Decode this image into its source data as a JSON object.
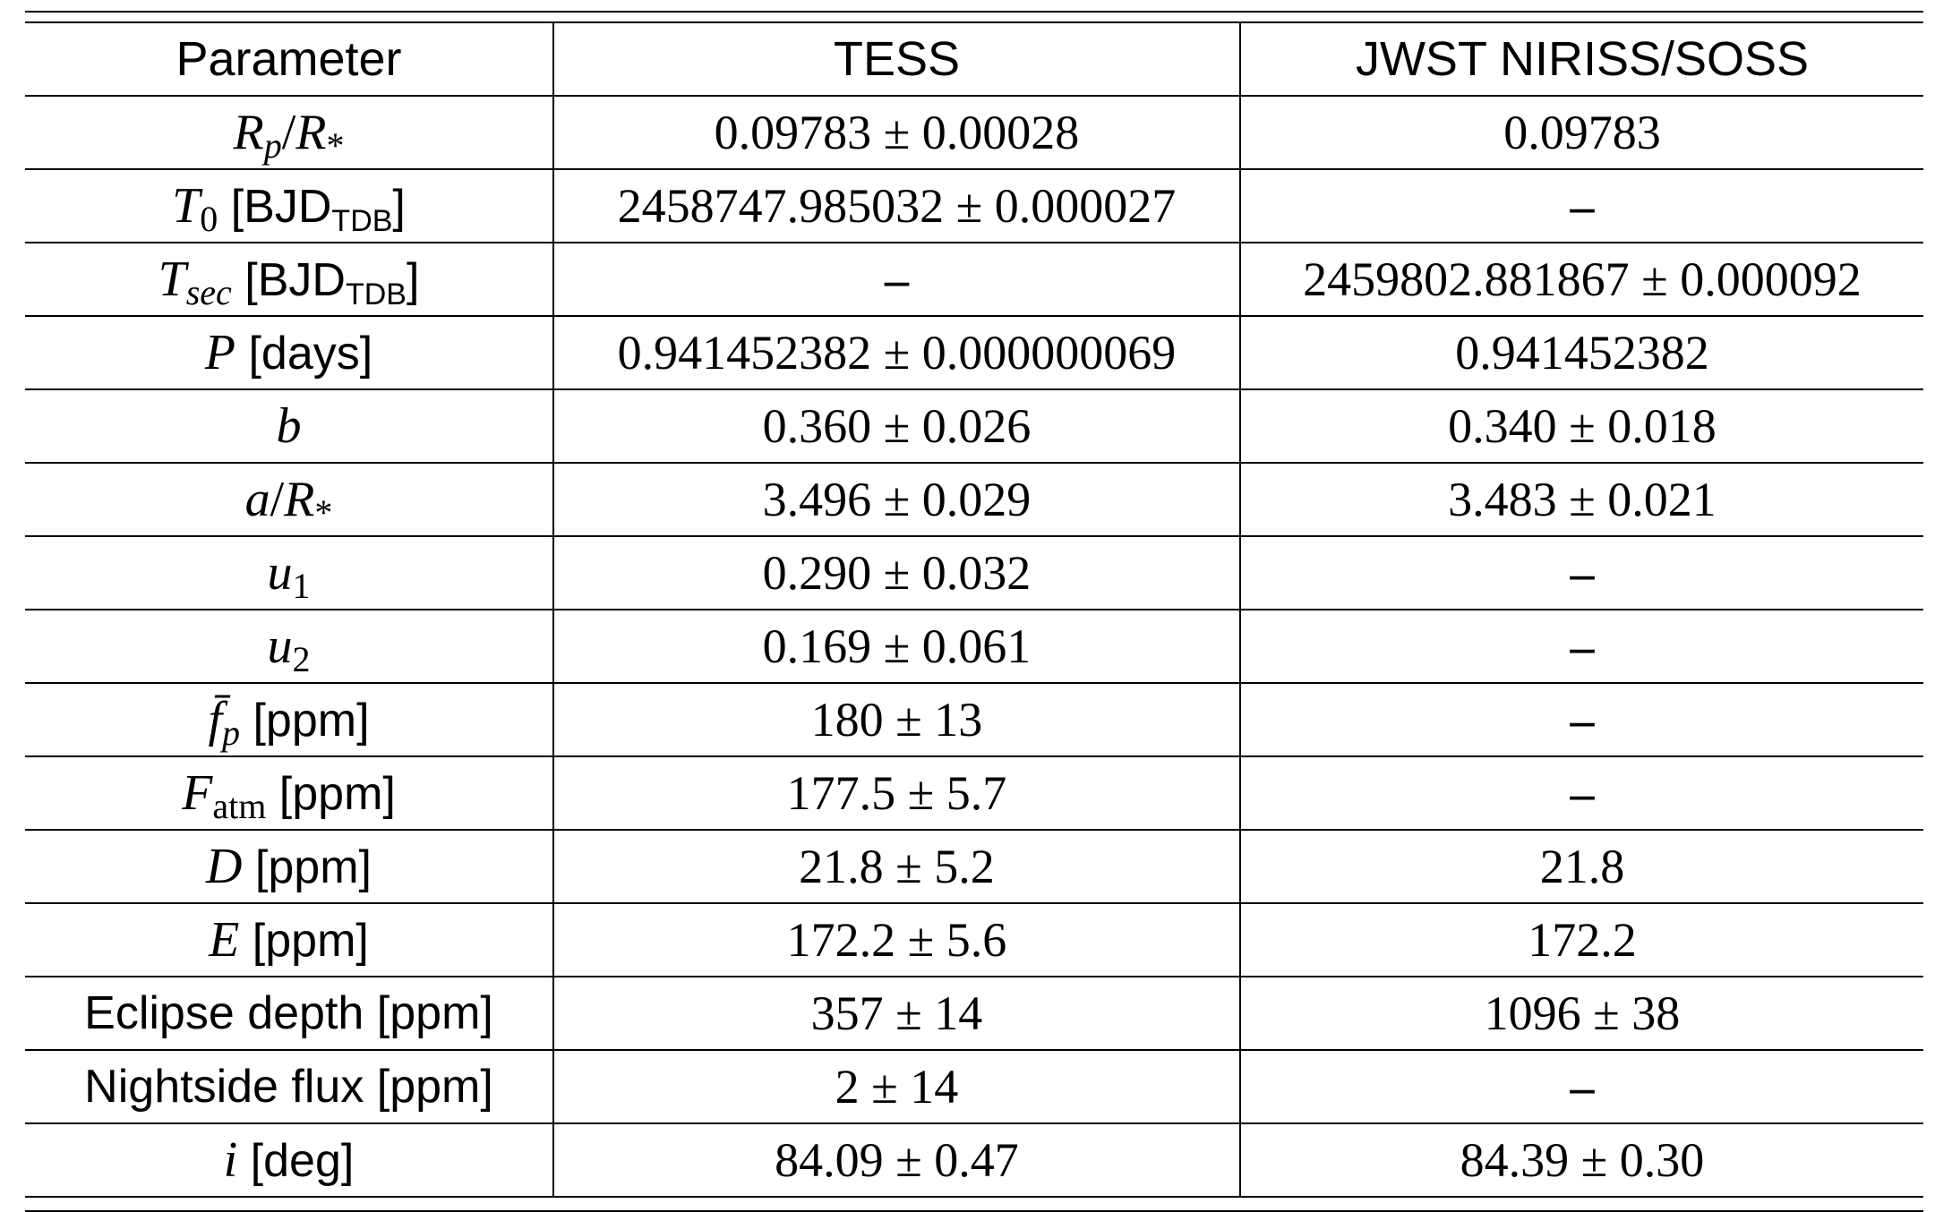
{
  "table": {
    "headers": [
      "Parameter",
      "TESS",
      "JWST NIRISS/SOSS"
    ],
    "params": {
      "rp": {
        "sym": "R",
        "sub": "p",
        "slash": "/",
        "sym2": "R",
        "sub2": "*"
      },
      "t0": {
        "sym": "T",
        "sub": "0",
        "unit": "[BJD",
        "tsub": "TDB",
        "close": "]"
      },
      "tsec": {
        "sym": "T",
        "sub": "sec",
        "unit": "[BJD",
        "tsub": "TDB",
        "close": "]"
      },
      "p": {
        "sym": "P",
        "unit": "[days]"
      },
      "b": {
        "sym": "b"
      },
      "ar": {
        "sym": "a",
        "slash": "/",
        "sym2": "R",
        "sub2": "*"
      },
      "u1": {
        "sym": "u",
        "sub": "1"
      },
      "u2": {
        "sym": "u",
        "sub": "2"
      },
      "fp": {
        "sym": "f̄",
        "sub": "p",
        "unit": "[ppm]"
      },
      "fatm": {
        "sym": "F",
        "sub": "atm",
        "unit": "[ppm]"
      },
      "d": {
        "sym": "D",
        "unit": "[ppm]"
      },
      "e": {
        "sym": "E",
        "unit": "[ppm]"
      },
      "eclipse": {
        "label": "Eclipse depth [ppm]"
      },
      "night": {
        "label": "Nightside flux [ppm]"
      },
      "i": {
        "sym": "i",
        "unit": "[deg]"
      }
    },
    "rows": [
      {
        "tess": "0.09783 ± 0.00028",
        "jwst": "0.09783"
      },
      {
        "tess": "2458747.985032 ± 0.000027",
        "jwst": "–"
      },
      {
        "tess": "–",
        "jwst": "2459802.881867 ± 0.000092"
      },
      {
        "tess": "0.941452382 ± 0.000000069",
        "jwst": "0.941452382"
      },
      {
        "tess": "0.360 ± 0.026",
        "jwst": "0.340 ± 0.018"
      },
      {
        "tess": "3.496 ± 0.029",
        "jwst": "3.483 ± 0.021"
      },
      {
        "tess": "0.290 ± 0.032",
        "jwst": "–"
      },
      {
        "tess": "0.169 ± 0.061",
        "jwst": "–"
      },
      {
        "tess": "180 ± 13",
        "jwst": "–"
      },
      {
        "tess": "177.5 ± 5.7",
        "jwst": "–"
      },
      {
        "tess": "21.8 ± 5.2",
        "jwst": "21.8"
      },
      {
        "tess": "172.2 ± 5.6",
        "jwst": "172.2"
      },
      {
        "tess": "357 ± 14",
        "jwst": "1096 ± 38"
      },
      {
        "tess": "2 ± 14",
        "jwst": "–"
      },
      {
        "tess": "84.09 ± 0.47",
        "jwst": "84.39 ± 0.30"
      }
    ]
  }
}
